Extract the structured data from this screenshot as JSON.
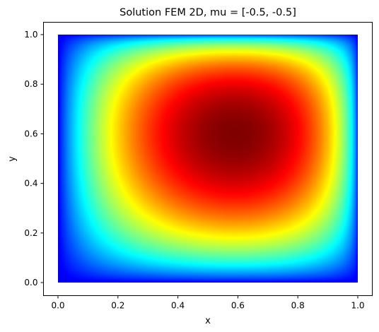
{
  "chart_data": {
    "type": "heatmap",
    "title": "Solution FEM 2D, mu = [-0.5, -0.5]",
    "xlabel": "x",
    "ylabel": "y",
    "xlim": [
      0.0,
      1.0
    ],
    "ylim": [
      0.0,
      1.0
    ],
    "xticks": [
      "0.0",
      "0.2",
      "0.4",
      "0.6",
      "0.8",
      "1.0"
    ],
    "yticks": [
      "0.0",
      "0.2",
      "0.4",
      "0.6",
      "0.8",
      "1.0"
    ],
    "xtick_values": [
      0.0,
      0.2,
      0.4,
      0.6,
      0.8,
      1.0
    ],
    "ytick_values": [
      0.0,
      0.2,
      0.4,
      0.6,
      0.8,
      1.0
    ],
    "colormap": "jet",
    "peak": {
      "x": 0.59,
      "y": 0.6,
      "value": 1.0
    },
    "boundary_value": 0.0,
    "grid": false,
    "legend": "none"
  }
}
